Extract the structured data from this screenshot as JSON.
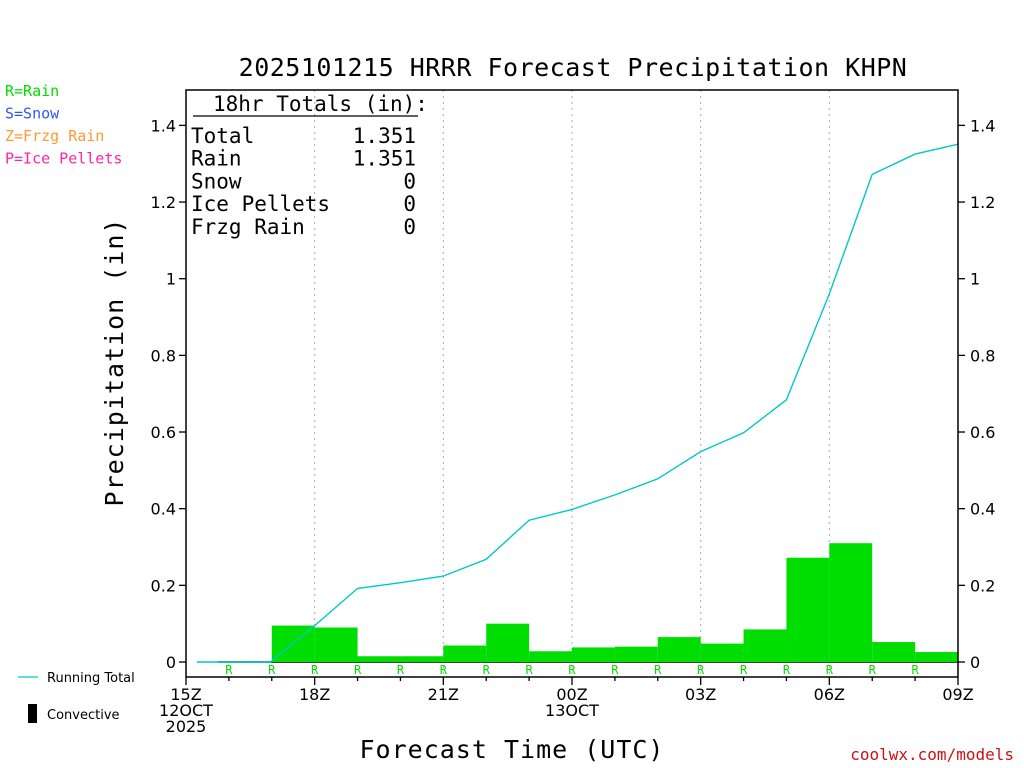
{
  "chart_data": {
    "type": "bar",
    "title": "2025101215 HRRR Forecast Precipitation KHPN",
    "xlabel": "Forecast Time (UTC)",
    "ylabel": "Precipitation (in)",
    "ylim": [
      0,
      1.5
    ],
    "y_ticks": [
      0,
      0.2,
      0.4,
      0.6,
      0.8,
      1,
      1.2,
      1.4
    ],
    "y_tick_labels": [
      "0",
      "0.2",
      "0.4",
      "0.6",
      "0.8",
      "1",
      "1.2",
      "1.4"
    ],
    "x_range_hours": [
      0,
      18
    ],
    "x_ticks": [
      {
        "hour": 0,
        "lines": [
          "15Z",
          "12OCT",
          "2025"
        ]
      },
      {
        "hour": 3,
        "lines": [
          "18Z"
        ]
      },
      {
        "hour": 6,
        "lines": [
          "21Z"
        ]
      },
      {
        "hour": 9,
        "lines": [
          "00Z",
          "13OCT"
        ]
      },
      {
        "hour": 12,
        "lines": [
          "03Z"
        ]
      },
      {
        "hour": 15,
        "lines": [
          "06Z"
        ]
      },
      {
        "hour": 18,
        "lines": [
          "09Z"
        ]
      }
    ],
    "grid_vertical_hours": [
      3,
      6,
      9,
      12,
      15
    ],
    "series": [
      {
        "name": "Hourly Precipitation",
        "kind": "bar",
        "color": "#00dd00",
        "values": [
          0,
          0,
          0.095,
          0.09,
          0.015,
          0.015,
          0.043,
          0.1,
          0.028,
          0.038,
          0.04,
          0.065,
          0.048,
          0.085,
          0.272,
          0.31,
          0.052,
          0.026
        ],
        "type_markers": [
          "",
          "R",
          "R",
          "R",
          "R",
          "R",
          "R",
          "R",
          "R",
          "R",
          "R",
          "R",
          "R",
          "R",
          "R",
          "R",
          "R",
          "R"
        ]
      },
      {
        "name": "Running Total",
        "kind": "line",
        "color": "#00c8c8",
        "hours": [
          0.25,
          1.0,
          1.97,
          3.0,
          4.0,
          5.0,
          6.0,
          7.0,
          8.0,
          9.0,
          10.0,
          11.0,
          12.0,
          13.0,
          14.0,
          15.0,
          16.0,
          17.0,
          18.0
        ],
        "values": [
          0,
          0,
          0,
          0.095,
          0.192,
          0.207,
          0.224,
          0.268,
          0.37,
          0.398,
          0.436,
          0.478,
          0.549,
          0.598,
          0.684,
          0.96,
          1.272,
          1.325,
          1.351
        ]
      }
    ],
    "totals_box": {
      "heading": "18hr Totals (in):",
      "rows": [
        {
          "label": "Total",
          "value": "1.351"
        },
        {
          "label": "Rain",
          "value": "1.351"
        },
        {
          "label": "Snow",
          "value": "0"
        },
        {
          "label": "Ice Pellets",
          "value": "0"
        },
        {
          "label": "Frzg Rain",
          "value": "0"
        }
      ]
    },
    "type_legend": [
      {
        "text": "R=Rain",
        "color": "#00dd00"
      },
      {
        "text": "S=Snow",
        "color": "#3355ee"
      },
      {
        "text": "Z=Frzg Rain",
        "color": "#ff9933"
      },
      {
        "text": "P=Ice Pellets",
        "color": "#ff22aa"
      }
    ],
    "bottom_legend": {
      "running_total": "Running Total",
      "convective": "Convective"
    },
    "credit": "coolwx.com/models"
  }
}
